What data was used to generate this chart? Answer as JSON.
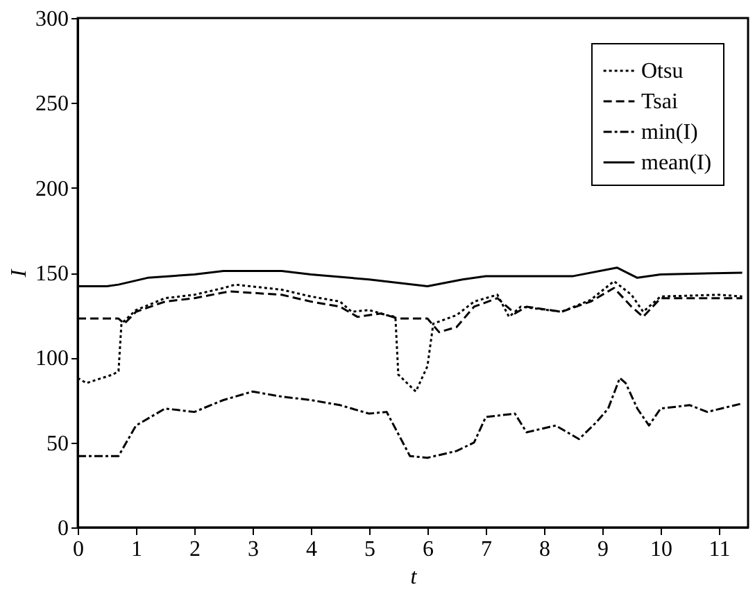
{
  "chart_data": {
    "type": "line",
    "xlabel": "t",
    "ylabel": "I",
    "xlim": [
      0,
      11.5
    ],
    "xticks": [
      0,
      1,
      2,
      3,
      4,
      5,
      6,
      7,
      8,
      9,
      10,
      11
    ],
    "ylim": [
      0,
      300
    ],
    "yticks": [
      0,
      50,
      100,
      150,
      200,
      250,
      300
    ],
    "grid": false,
    "legend": "top right",
    "marker": "none",
    "series": [
      {
        "name": "Otsu",
        "color": "#000000",
        "line_style": "dotted",
        "x": [
          0,
          0.15,
          0.6,
          0.7,
          0.75,
          1,
          1.5,
          2,
          2.5,
          2.7,
          3.5,
          4,
          4.5,
          4.7,
          5,
          5.3,
          5.45,
          5.5,
          5.8,
          6,
          6.1,
          6.5,
          6.8,
          7.2,
          7.4,
          7.6,
          8.3,
          8.8,
          9.2,
          9.5,
          9.7,
          10,
          11,
          11.4
        ],
        "values": [
          88,
          85,
          90,
          92,
          120,
          128,
          135,
          137,
          141,
          143,
          140,
          136,
          133,
          127,
          128,
          125,
          124,
          90,
          80,
          95,
          120,
          125,
          133,
          137,
          124,
          130,
          127,
          134,
          145,
          137,
          127,
          136,
          137,
          136
        ]
      },
      {
        "name": "Tsai",
        "color": "#000000",
        "line_style": "dashed",
        "x": [
          0,
          0.7,
          0.8,
          1,
          1.5,
          2,
          2.6,
          3.5,
          4,
          4.5,
          4.8,
          5.2,
          5.5,
          6,
          6.2,
          6.5,
          6.8,
          7.2,
          7.5,
          7.7,
          8.3,
          8.8,
          9.2,
          9.5,
          9.7,
          10,
          11.4
        ],
        "values": [
          123,
          123,
          120,
          127,
          133,
          135,
          139,
          137,
          133,
          130,
          124,
          126,
          123,
          123,
          115,
          118,
          130,
          135,
          126,
          130,
          127,
          133,
          141,
          130,
          124,
          135,
          135
        ]
      },
      {
        "name": "min(I)",
        "color": "#000000",
        "line_style": "dashdot",
        "x": [
          0,
          0.7,
          0.8,
          1,
          1.5,
          2,
          2.5,
          3,
          3.5,
          4,
          4.5,
          5,
          5.3,
          5.5,
          5.7,
          6,
          6.5,
          6.8,
          7,
          7.5,
          7.7,
          8.2,
          8.6,
          8.9,
          9.1,
          9.3,
          9.4,
          9.6,
          9.8,
          10,
          10.5,
          10.8,
          11.4
        ],
        "values": [
          42,
          42,
          48,
          60,
          70,
          68,
          75,
          80,
          77,
          75,
          72,
          67,
          68,
          55,
          42,
          41,
          45,
          50,
          65,
          67,
          56,
          60,
          52,
          62,
          70,
          88,
          85,
          70,
          60,
          70,
          72,
          68,
          73
        ]
      },
      {
        "name": "mean(I)",
        "color": "#000000",
        "line_style": "solid",
        "x": [
          0,
          0.5,
          0.7,
          1.2,
          2,
          2.5,
          3.5,
          4,
          5,
          6,
          6.6,
          7,
          8.5,
          9.25,
          9.6,
          10,
          11.4
        ],
        "values": [
          142,
          142,
          143,
          147,
          149,
          151,
          151,
          149,
          146,
          142,
          146,
          148,
          148,
          153,
          147,
          149,
          150
        ]
      }
    ]
  }
}
